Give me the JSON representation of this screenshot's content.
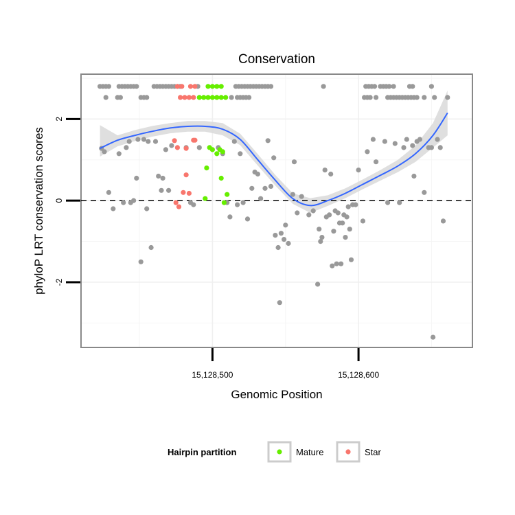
{
  "chart_data": {
    "type": "scatter",
    "title": "Conservation",
    "xlabel": "Genomic Position",
    "ylabel": "phyloP LRT conservation scores",
    "xlim": [
      15128410,
      15128678
    ],
    "ylim": [
      -3.6,
      3.1
    ],
    "x_ticks": [
      15128500,
      15128600
    ],
    "x_tick_labels": [
      "15,128,500",
      "15,128,600"
    ],
    "y_ticks": [
      -2,
      0,
      2
    ],
    "y_tick_labels": [
      "-2",
      "0",
      "2"
    ],
    "reference_line": {
      "y": 0,
      "style": "dashed"
    },
    "legend": {
      "title": "Hairpin partition",
      "position": "bottom",
      "entries": [
        {
          "label": "Mature",
          "color": "#66ee00"
        },
        {
          "label": "Star",
          "color": "#f8766d"
        }
      ]
    },
    "colors": {
      "other": "#999999",
      "mature": "#66ee00",
      "star": "#f8766d",
      "smooth": "#3366ff",
      "ribbon": "#d9d9d9"
    },
    "series": [
      {
        "name": "Other",
        "points": [
          [
            15128423,
            2.8
          ],
          [
            15128425,
            2.8
          ],
          [
            15128427,
            2.8
          ],
          [
            15128429,
            2.8
          ],
          [
            15128436,
            2.8
          ],
          [
            15128438,
            2.8
          ],
          [
            15128440,
            2.8
          ],
          [
            15128442,
            2.8
          ],
          [
            15128444,
            2.8
          ],
          [
            15128446,
            2.8
          ],
          [
            15128448,
            2.8
          ],
          [
            15128460,
            2.8
          ],
          [
            15128462,
            2.8
          ],
          [
            15128464,
            2.8
          ],
          [
            15128466,
            2.8
          ],
          [
            15128468,
            2.8
          ],
          [
            15128470,
            2.8
          ],
          [
            15128472,
            2.8
          ],
          [
            15128474,
            2.8
          ],
          [
            15128476,
            2.8
          ],
          [
            15128478,
            2.8
          ],
          [
            15128490,
            2.8
          ],
          [
            15128516,
            2.8
          ],
          [
            15128518,
            2.8
          ],
          [
            15128520,
            2.8
          ],
          [
            15128522,
            2.8
          ],
          [
            15128524,
            2.8
          ],
          [
            15128526,
            2.8
          ],
          [
            15128528,
            2.8
          ],
          [
            15128530,
            2.8
          ],
          [
            15128532,
            2.8
          ],
          [
            15128534,
            2.8
          ],
          [
            15128536,
            2.8
          ],
          [
            15128538,
            2.8
          ],
          [
            15128540,
            2.8
          ],
          [
            15128576,
            2.8
          ],
          [
            15128605,
            2.8
          ],
          [
            15128607,
            2.8
          ],
          [
            15128609,
            2.8
          ],
          [
            15128611,
            2.8
          ],
          [
            15128615,
            2.8
          ],
          [
            15128617,
            2.8
          ],
          [
            15128619,
            2.8
          ],
          [
            15128621,
            2.8
          ],
          [
            15128624,
            2.8
          ],
          [
            15128635,
            2.8
          ],
          [
            15128637,
            2.8
          ],
          [
            15128650,
            2.8
          ],
          [
            15128427,
            2.53
          ],
          [
            15128435,
            2.53
          ],
          [
            15128437,
            2.53
          ],
          [
            15128451,
            2.53
          ],
          [
            15128453,
            2.53
          ],
          [
            15128455,
            2.53
          ],
          [
            15128513,
            2.53
          ],
          [
            15128517,
            2.53
          ],
          [
            15128519,
            2.53
          ],
          [
            15128521,
            2.53
          ],
          [
            15128523,
            2.53
          ],
          [
            15128525,
            2.53
          ],
          [
            15128604,
            2.53
          ],
          [
            15128606,
            2.53
          ],
          [
            15128608,
            2.53
          ],
          [
            15128612,
            2.53
          ],
          [
            15128620,
            2.53
          ],
          [
            15128622,
            2.53
          ],
          [
            15128624,
            2.53
          ],
          [
            15128626,
            2.53
          ],
          [
            15128628,
            2.53
          ],
          [
            15128630,
            2.53
          ],
          [
            15128632,
            2.53
          ],
          [
            15128634,
            2.53
          ],
          [
            15128636,
            2.53
          ],
          [
            15128638,
            2.53
          ],
          [
            15128640,
            2.53
          ],
          [
            15128645,
            2.53
          ],
          [
            15128652,
            2.53
          ],
          [
            15128661,
            2.53
          ],
          [
            15128424,
            1.28
          ],
          [
            15128426,
            1.2
          ],
          [
            15128429,
            0.2
          ],
          [
            15128432,
            -0.2
          ],
          [
            15128436,
            1.15
          ],
          [
            15128439,
            -0.05
          ],
          [
            15128441,
            1.3
          ],
          [
            15128443,
            1.45
          ],
          [
            15128444,
            -0.05
          ],
          [
            15128446,
            0.0
          ],
          [
            15128448,
            0.55
          ],
          [
            15128449,
            1.5
          ],
          [
            15128451,
            -1.5
          ],
          [
            15128453,
            1.5
          ],
          [
            15128455,
            -0.2
          ],
          [
            15128456,
            1.45
          ],
          [
            15128458,
            -1.15
          ],
          [
            15128461,
            1.45
          ],
          [
            15128463,
            0.6
          ],
          [
            15128465,
            0.25
          ],
          [
            15128466,
            0.55
          ],
          [
            15128468,
            1.25
          ],
          [
            15128470,
            0.25
          ],
          [
            15128472,
            1.35
          ],
          [
            15128482,
            1.3
          ],
          [
            15128485,
            -0.05
          ],
          [
            15128487,
            -0.1
          ],
          [
            15128491,
            1.3
          ],
          [
            15128504,
            1.3
          ],
          [
            15128507,
            1.15
          ],
          [
            15128510,
            -0.05
          ],
          [
            15128512,
            -0.4
          ],
          [
            15128515,
            1.45
          ],
          [
            15128517,
            -0.1
          ],
          [
            15128519,
            1.15
          ],
          [
            15128521,
            -0.05
          ],
          [
            15128524,
            -0.45
          ],
          [
            15128527,
            0.3
          ],
          [
            15128529,
            0.7
          ],
          [
            15128531,
            0.65
          ],
          [
            15128533,
            0.05
          ],
          [
            15128536,
            0.3
          ],
          [
            15128538,
            1.47
          ],
          [
            15128540,
            0.35
          ],
          [
            15128542,
            1.05
          ],
          [
            15128543,
            -0.85
          ],
          [
            15128545,
            -1.15
          ],
          [
            15128546,
            -2.5
          ],
          [
            15128547,
            -0.8
          ],
          [
            15128549,
            -0.95
          ],
          [
            15128550,
            -0.6
          ],
          [
            15128552,
            -1.05
          ],
          [
            15128555,
            0.15
          ],
          [
            15128556,
            0.95
          ],
          [
            15128558,
            -0.3
          ],
          [
            15128561,
            0.1
          ],
          [
            15128566,
            -0.35
          ],
          [
            15128569,
            -0.25
          ],
          [
            15128572,
            -2.05
          ],
          [
            15128573,
            -0.7
          ],
          [
            15128574,
            -1.0
          ],
          [
            15128575,
            -0.9
          ],
          [
            15128577,
            0.75
          ],
          [
            15128578,
            -0.4
          ],
          [
            15128580,
            -0.35
          ],
          [
            15128581,
            0.65
          ],
          [
            15128582,
            -1.6
          ],
          [
            15128583,
            -0.75
          ],
          [
            15128584,
            -0.25
          ],
          [
            15128585,
            -1.55
          ],
          [
            15128586,
            -0.3
          ],
          [
            15128587,
            -0.55
          ],
          [
            15128588,
            -1.55
          ],
          [
            15128589,
            -0.55
          ],
          [
            15128590,
            -0.35
          ],
          [
            15128591,
            -0.9
          ],
          [
            15128592,
            -0.4
          ],
          [
            15128593,
            -0.15
          ],
          [
            15128594,
            -0.7
          ],
          [
            15128595,
            -1.45
          ],
          [
            15128596,
            -0.1
          ],
          [
            15128598,
            -0.1
          ],
          [
            15128600,
            0.75
          ],
          [
            15128603,
            -0.5
          ],
          [
            15128606,
            1.2
          ],
          [
            15128610,
            1.5
          ],
          [
            15128612,
            0.95
          ],
          [
            15128618,
            1.45
          ],
          [
            15128620,
            -0.05
          ],
          [
            15128625,
            1.4
          ],
          [
            15128628,
            -0.05
          ],
          [
            15128631,
            1.3
          ],
          [
            15128633,
            1.5
          ],
          [
            15128637,
            1.35
          ],
          [
            15128638,
            0.6
          ],
          [
            15128640,
            1.45
          ],
          [
            15128642,
            1.5
          ],
          [
            15128645,
            0.2
          ],
          [
            15128648,
            1.3
          ],
          [
            15128650,
            1.3
          ],
          [
            15128651,
            -3.35
          ],
          [
            15128654,
            1.5
          ],
          [
            15128656,
            1.3
          ],
          [
            15128658,
            -0.5
          ]
        ]
      },
      {
        "name": "Mature",
        "points": [
          [
            15128497,
            2.8
          ],
          [
            15128500,
            2.8
          ],
          [
            15128503,
            2.8
          ],
          [
            15128506,
            2.8
          ],
          [
            15128491,
            2.53
          ],
          [
            15128494,
            2.53
          ],
          [
            15128497,
            2.53
          ],
          [
            15128500,
            2.53
          ],
          [
            15128503,
            2.53
          ],
          [
            15128506,
            2.53
          ],
          [
            15128509,
            2.53
          ],
          [
            15128498,
            1.3
          ],
          [
            15128500,
            1.25
          ],
          [
            15128503,
            1.15
          ],
          [
            15128505,
            1.25
          ],
          [
            15128507,
            1.2
          ],
          [
            15128496,
            0.8
          ],
          [
            15128506,
            0.55
          ],
          [
            15128495,
            0.05
          ],
          [
            15128510,
            0.15
          ],
          [
            15128508,
            -0.05
          ]
        ]
      },
      {
        "name": "Star",
        "points": [
          [
            15128476,
            2.8
          ],
          [
            15128479,
            2.8
          ],
          [
            15128485,
            2.8
          ],
          [
            15128488,
            2.8
          ],
          [
            15128478,
            2.53
          ],
          [
            15128481,
            2.53
          ],
          [
            15128484,
            2.53
          ],
          [
            15128487,
            2.53
          ],
          [
            15128474,
            1.47
          ],
          [
            15128476,
            1.3
          ],
          [
            15128482,
            1.28
          ],
          [
            15128487,
            1.48
          ],
          [
            15128488,
            1.48
          ],
          [
            15128482,
            0.63
          ],
          [
            15128480,
            0.2
          ],
          [
            15128484,
            0.18
          ],
          [
            15128475,
            -0.05
          ],
          [
            15128477,
            -0.15
          ]
        ]
      }
    ],
    "smooth_curve": {
      "x": [
        15128423,
        15128435,
        15128447,
        15128459,
        15128471,
        15128483,
        15128495,
        15128507,
        15128519,
        15128531,
        15128543,
        15128555,
        15128567,
        15128579,
        15128591,
        15128603,
        15128615,
        15128627,
        15128639,
        15128651,
        15128661
      ],
      "y": [
        1.28,
        1.48,
        1.6,
        1.7,
        1.78,
        1.82,
        1.82,
        1.75,
        1.5,
        1.0,
        0.5,
        0.05,
        -0.12,
        0.0,
        0.18,
        0.4,
        0.62,
        0.85,
        1.15,
        1.6,
        2.15
      ],
      "lower": [
        1.08,
        1.33,
        1.46,
        1.57,
        1.65,
        1.69,
        1.69,
        1.6,
        1.36,
        0.86,
        0.37,
        -0.08,
        -0.3,
        -0.13,
        0.06,
        0.28,
        0.49,
        0.7,
        0.95,
        1.3,
        1.6
      ],
      "upper": [
        1.85,
        1.6,
        1.73,
        1.83,
        1.9,
        1.95,
        1.95,
        1.9,
        1.64,
        1.14,
        0.63,
        0.18,
        0.06,
        0.13,
        0.3,
        0.52,
        0.75,
        1.0,
        1.35,
        1.9,
        2.7
      ]
    }
  }
}
